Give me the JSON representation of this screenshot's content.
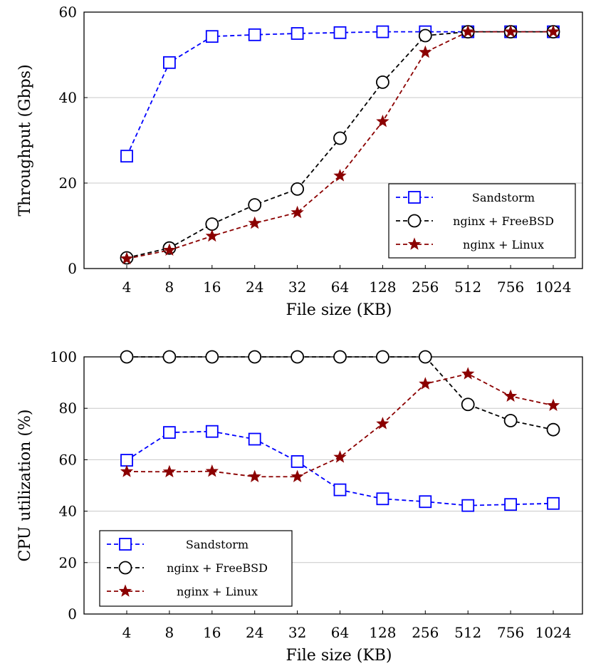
{
  "chart_data": [
    {
      "type": "line",
      "x_categories": [
        "4",
        "8",
        "16",
        "24",
        "32",
        "64",
        "128",
        "256",
        "512",
        "756",
        "1024"
      ],
      "xlabel": "File size (KB)",
      "ylabel": "Throughput (Gbps)",
      "ylim": [
        0,
        60
      ],
      "yticks": [
        0,
        20,
        40,
        60
      ],
      "grid": "horizontal",
      "legend_position": "bottom-right",
      "series": [
        {
          "name": "Sandstorm",
          "color": "#0000ff",
          "marker": "square",
          "values": [
            26.3,
            48.2,
            54.3,
            54.7,
            55.0,
            55.2,
            55.4,
            55.4,
            55.4,
            55.4,
            55.4
          ]
        },
        {
          "name": "nginx + FreeBSD",
          "color": "#000000",
          "marker": "circle",
          "values": [
            2.5,
            4.8,
            10.4,
            14.9,
            18.6,
            30.5,
            43.6,
            54.5,
            55.4,
            55.4,
            55.4
          ]
        },
        {
          "name": "nginx + Linux",
          "color": "#8b0000",
          "marker": "star",
          "values": [
            2.3,
            4.3,
            7.6,
            10.6,
            13.1,
            21.7,
            34.4,
            50.6,
            55.4,
            55.4,
            55.4
          ]
        }
      ]
    },
    {
      "type": "line",
      "x_categories": [
        "4",
        "8",
        "16",
        "24",
        "32",
        "64",
        "128",
        "256",
        "512",
        "756",
        "1024"
      ],
      "xlabel": "File size (KB)",
      "ylabel": "CPU utilization (%)",
      "ylim": [
        0,
        100
      ],
      "yticks": [
        0,
        20,
        40,
        60,
        80,
        100
      ],
      "grid": "horizontal",
      "legend_position": "bottom-left",
      "series": [
        {
          "name": "Sandstorm",
          "color": "#0000ff",
          "marker": "square",
          "values": [
            59.8,
            70.6,
            71.0,
            68.0,
            59.3,
            48.3,
            44.8,
            43.7,
            42.2,
            42.6,
            43.0
          ]
        },
        {
          "name": "nginx + FreeBSD",
          "color": "#000000",
          "marker": "circle",
          "values": [
            100,
            100,
            100,
            100,
            100,
            100,
            100,
            100,
            81.5,
            75.2,
            71.7
          ]
        },
        {
          "name": "nginx + Linux",
          "color": "#8b0000",
          "marker": "star",
          "values": [
            55.4,
            55.3,
            55.5,
            53.4,
            53.4,
            61.0,
            74.0,
            89.5,
            93.4,
            84.7,
            81.1
          ]
        }
      ]
    }
  ]
}
